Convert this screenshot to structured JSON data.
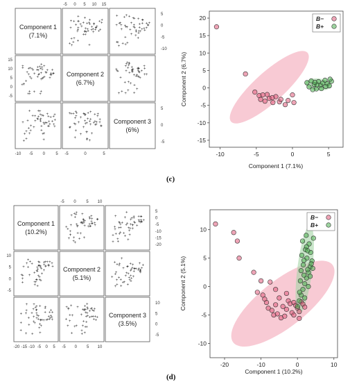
{
  "panels": [
    {
      "label": "(c)",
      "matrix": {
        "diag_labels": [
          [
            "Component 1",
            "(7.1%)"
          ],
          [
            "Component 2",
            "(6.7%)"
          ],
          [
            "Component 3",
            "(6%)"
          ]
        ],
        "top_ticks": [
          "-5",
          "0",
          "5",
          "10",
          "15"
        ],
        "right_ticks_row1": [
          "5",
          "0",
          "-5",
          "-10"
        ],
        "left_ticks_row2": [
          "15",
          "10",
          "5",
          "0",
          "-5"
        ],
        "right_ticks_row3": [
          "5",
          "0",
          "-5"
        ],
        "bottom_ticks": [
          "-10",
          "-5",
          "0",
          "5"
        ],
        "bottom_ticks_col2": [
          "-5",
          "0",
          "5"
        ]
      },
      "chart_data": {
        "type": "scatter",
        "xlabel": "Component 1 (7.1%)",
        "ylabel": "Component 2 (6.7%)",
        "xlim": [
          -11.5,
          7
        ],
        "ylim": [
          -17,
          22
        ],
        "xticks": [
          -10,
          -5,
          0,
          5
        ],
        "yticks": [
          20,
          15,
          10,
          5,
          0,
          -5,
          -10,
          -15
        ],
        "legend": {
          "position": "top-right",
          "entries": [
            "B−",
            "B+"
          ]
        },
        "series": [
          {
            "name": "B−",
            "color": "#e05a7a",
            "x": [
              -10.5,
              -6.5,
              -5.2,
              -4.6,
              -4.4,
              -4.1,
              -3.8,
              -3.5,
              -3.2,
              -2.7,
              -2.3,
              -1.8,
              -1.0,
              -0.6,
              0.0,
              0.2,
              -2.8,
              -1.6
            ],
            "y": [
              17.5,
              4.0,
              -1.2,
              -2.2,
              -3.3,
              -2.0,
              -3.8,
              -1.9,
              -3.0,
              -4.2,
              -2.5,
              -4.0,
              -4.8,
              -3.6,
              -2.0,
              -4.2,
              -2.8,
              -3.3
            ]
          },
          {
            "name": "B+",
            "color": "#4caf50",
            "x": [
              2.0,
              2.3,
              2.6,
              3.0,
              3.3,
              3.6,
              3.9,
              4.2,
              4.5,
              4.8,
              5.1,
              5.4,
              2.8,
              3.4,
              4.0,
              4.6,
              5.2,
              3.1
            ],
            "y": [
              1.5,
              0.3,
              2.0,
              1.0,
              -0.3,
              1.8,
              0.8,
              1.4,
              2.2,
              1.2,
              0.6,
              1.9,
              -0.5,
              0.9,
              -0.2,
              0.4,
              2.5,
              1.6
            ]
          }
        ],
        "ellipses": [
          {
            "series": "B−",
            "cx": -3.2,
            "cy": 0.2,
            "rx": 9.6,
            "ry": 2.8,
            "angle_deg": -42,
            "color": "#f4a6b8"
          },
          {
            "series": "B+",
            "cx": 3.6,
            "cy": 1.0,
            "rx": 2.5,
            "ry": 1.1,
            "angle_deg": 5,
            "color": "#a5d6a7"
          }
        ]
      }
    },
    {
      "label": "(d)",
      "matrix": {
        "diag_labels": [
          [
            "Component 1",
            "(10.2%)"
          ],
          [
            "Component 2",
            "(5.1%)"
          ],
          [
            "Component 3",
            "(3.5%)"
          ]
        ],
        "top_ticks": [
          "-5",
          "0",
          "5",
          "10"
        ],
        "right_ticks_row1": [
          "5",
          "0",
          "-5",
          "-10",
          "-15",
          "-20"
        ],
        "left_ticks_row2": [
          "10",
          "5",
          "0",
          "-5"
        ],
        "right_ticks_row3": [
          "10",
          "5",
          "0",
          "-5"
        ],
        "bottom_ticks": [
          "-20",
          "-15",
          "-10",
          "-5",
          "0",
          "5"
        ],
        "bottom_ticks_col2": [
          "-5",
          "0",
          "5",
          "10"
        ]
      },
      "chart_data": {
        "type": "scatter",
        "xlabel": "Component 1 (10.2%)",
        "ylabel": "Component 2 (5.1%)",
        "xlim": [
          -24,
          11
        ],
        "ylim": [
          -12.5,
          13.5
        ],
        "xticks": [
          -20,
          -10,
          0,
          10
        ],
        "yticks": [
          10,
          5,
          0,
          -5,
          -10
        ],
        "legend": {
          "position": "top-right",
          "entries": [
            "B−",
            "B+"
          ]
        },
        "series": [
          {
            "name": "B−",
            "color": "#e05a7a",
            "x": [
              -22.5,
              -17.5,
              -16.5,
              -16.0,
              -12.0,
              -10.0,
              -9.5,
              -8.5,
              -8.0,
              -7.0,
              -6.5,
              -6.0,
              -5.5,
              -5.0,
              -4.5,
              -4.0,
              -3.5,
              -3.0,
              -2.5,
              -2.0,
              -1.5,
              -1.0,
              -0.5,
              0.0,
              0.5,
              1.0,
              1.5,
              2.0,
              -6.0,
              -9.0,
              -3.0,
              -1.0,
              0.5,
              -11.0,
              -7.5
            ],
            "y": [
              11.0,
              9.5,
              8.0,
              5.0,
              2.5,
              1.0,
              -1.5,
              -2.8,
              -3.8,
              -4.2,
              -5.0,
              -3.2,
              -4.8,
              -2.0,
              -5.5,
              -3.5,
              -5.2,
              -4.0,
              -2.5,
              -3.0,
              -4.6,
              -2.8,
              -3.3,
              -3.8,
              -4.4,
              -2.7,
              -3.1,
              -3.6,
              -0.5,
              -2.2,
              -1.2,
              -5.0,
              -5.6,
              -1.0,
              0.8
            ]
          },
          {
            "name": "B+",
            "color": "#4caf50",
            "x": [
              0.0,
              0.5,
              1.0,
              1.5,
              2.0,
              2.5,
              3.0,
              3.5,
              4.0,
              1.2,
              2.2,
              3.2,
              0.8,
              1.8,
              2.8,
              3.8,
              1.4,
              2.4,
              3.4,
              0.6,
              1.6,
              2.6,
              3.6,
              4.4,
              2.0,
              3.0,
              1.0,
              2.5,
              3.5,
              4.2,
              1.8,
              2.8
            ],
            "y": [
              -3.5,
              -2.5,
              -1.5,
              -0.5,
              0.5,
              1.5,
              2.5,
              3.5,
              4.5,
              5.5,
              6.5,
              7.5,
              1.0,
              2.0,
              3.0,
              4.0,
              8.0,
              9.0,
              10.5,
              -1.0,
              3.8,
              5.0,
              6.0,
              8.5,
              -2.0,
              0.0,
              2.8,
              7.0,
              1.8,
              3.2,
              4.6,
              6.3
            ]
          }
        ],
        "ellipses": [
          {
            "series": "B−",
            "cx": -4.0,
            "cy": -3.0,
            "rx": 13.5,
            "ry": 5.0,
            "angle_deg": -38,
            "color": "#f4a6b8"
          },
          {
            "series": "B+",
            "cx": 2.0,
            "cy": 3.0,
            "rx": 9.5,
            "ry": 1.6,
            "angle_deg": -83,
            "color": "#a5d6a7"
          }
        ]
      }
    }
  ]
}
